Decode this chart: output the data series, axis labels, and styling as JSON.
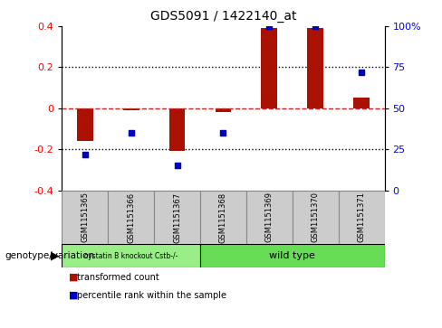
{
  "title": "GDS5091 / 1422140_at",
  "samples": [
    "GSM1151365",
    "GSM1151366",
    "GSM1151367",
    "GSM1151368",
    "GSM1151369",
    "GSM1151370",
    "GSM1151371"
  ],
  "bar_values": [
    -0.16,
    -0.01,
    -0.21,
    -0.02,
    0.39,
    0.39,
    0.05
  ],
  "dot_values": [
    22,
    35,
    15,
    35,
    100,
    100,
    72
  ],
  "ylim_left": [
    -0.4,
    0.4
  ],
  "ylim_right": [
    0,
    100
  ],
  "bar_color": "#AA1100",
  "dot_color": "#0000BB",
  "zero_line_color": "#CC2222",
  "dotted_line_color": "#000000",
  "group1_label": "cystatin B knockout Cstb-/-",
  "group2_label": "wild type",
  "group1_indices": [
    0,
    1,
    2
  ],
  "group2_indices": [
    3,
    4,
    5,
    6
  ],
  "group1_color": "#99EE88",
  "group2_color": "#66DD55",
  "legend_bar_label": "transformed count",
  "legend_dot_label": "percentile rank within the sample",
  "genotype_label": "genotype/variation",
  "yticks_left": [
    -0.4,
    -0.2,
    0.0,
    0.2,
    0.4
  ],
  "yticks_right": [
    0,
    25,
    50,
    75,
    100
  ],
  "background_color": "#ffffff",
  "plot_bg_color": "#ffffff",
  "bar_width": 0.35,
  "sample_box_color": "#cccccc",
  "sample_box_edge": "#888888"
}
